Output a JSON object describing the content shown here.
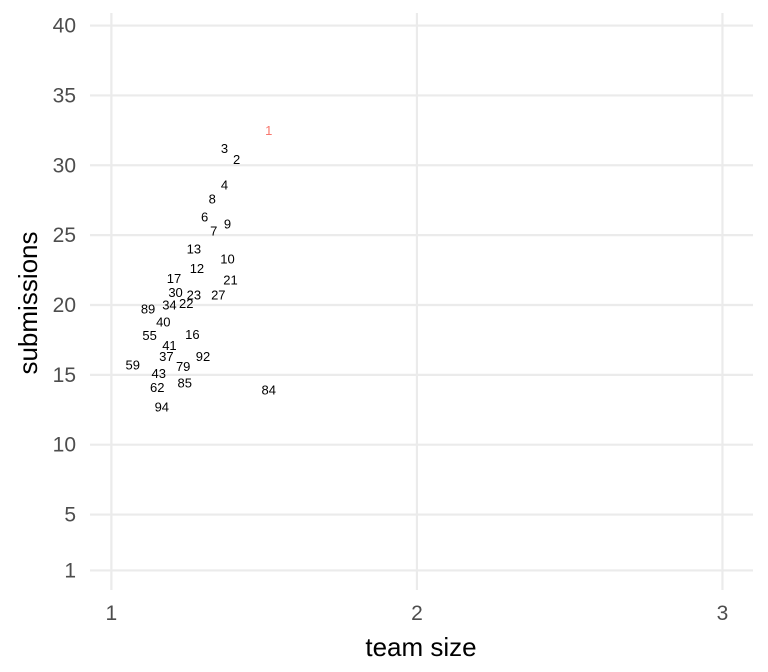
{
  "chart_data": {
    "type": "scatter",
    "title": "",
    "xlabel": "team size",
    "ylabel": "submissions",
    "xlim": [
      0.93,
      3.1
    ],
    "ylim": [
      -0.4,
      40.9
    ],
    "x_ticks": [
      1,
      2,
      3
    ],
    "y_ticks": [
      1,
      5,
      10,
      15,
      20,
      25,
      30,
      35,
      40
    ],
    "grid": true,
    "legend": "none",
    "colors": {
      "default": "#000000",
      "highlight": "#f8766d",
      "grid": "#ebebeb"
    },
    "points": [
      {
        "label": "1",
        "x": 1.515,
        "y": 32.5,
        "highlight": true
      },
      {
        "label": "3",
        "x": 1.37,
        "y": 31.2
      },
      {
        "label": "2",
        "x": 1.41,
        "y": 30.4
      },
      {
        "label": "4",
        "x": 1.37,
        "y": 28.6
      },
      {
        "label": "8",
        "x": 1.33,
        "y": 27.6
      },
      {
        "label": "6",
        "x": 1.305,
        "y": 26.3
      },
      {
        "label": "9",
        "x": 1.38,
        "y": 25.8
      },
      {
        "label": "7",
        "x": 1.335,
        "y": 25.3
      },
      {
        "label": "13",
        "x": 1.27,
        "y": 24.0
      },
      {
        "label": "10",
        "x": 1.38,
        "y": 23.3
      },
      {
        "label": "12",
        "x": 1.28,
        "y": 22.6
      },
      {
        "label": "17",
        "x": 1.205,
        "y": 21.9
      },
      {
        "label": "21",
        "x": 1.39,
        "y": 21.8
      },
      {
        "label": "30",
        "x": 1.21,
        "y": 20.9
      },
      {
        "label": "23",
        "x": 1.27,
        "y": 20.7
      },
      {
        "label": "27",
        "x": 1.35,
        "y": 20.7
      },
      {
        "label": "34",
        "x": 1.19,
        "y": 20.0
      },
      {
        "label": "22",
        "x": 1.245,
        "y": 20.1
      },
      {
        "label": "89",
        "x": 1.12,
        "y": 19.7
      },
      {
        "label": "40",
        "x": 1.17,
        "y": 18.8
      },
      {
        "label": "55",
        "x": 1.125,
        "y": 17.8
      },
      {
        "label": "16",
        "x": 1.265,
        "y": 17.9
      },
      {
        "label": "41",
        "x": 1.19,
        "y": 17.1
      },
      {
        "label": "37",
        "x": 1.18,
        "y": 16.3
      },
      {
        "label": "92",
        "x": 1.3,
        "y": 16.3
      },
      {
        "label": "59",
        "x": 1.07,
        "y": 15.7
      },
      {
        "label": "79",
        "x": 1.235,
        "y": 15.6
      },
      {
        "label": "43",
        "x": 1.155,
        "y": 15.1
      },
      {
        "label": "62",
        "x": 1.15,
        "y": 14.1
      },
      {
        "label": "85",
        "x": 1.24,
        "y": 14.4
      },
      {
        "label": "84",
        "x": 1.515,
        "y": 13.9
      },
      {
        "label": "94",
        "x": 1.165,
        "y": 12.7
      }
    ]
  }
}
